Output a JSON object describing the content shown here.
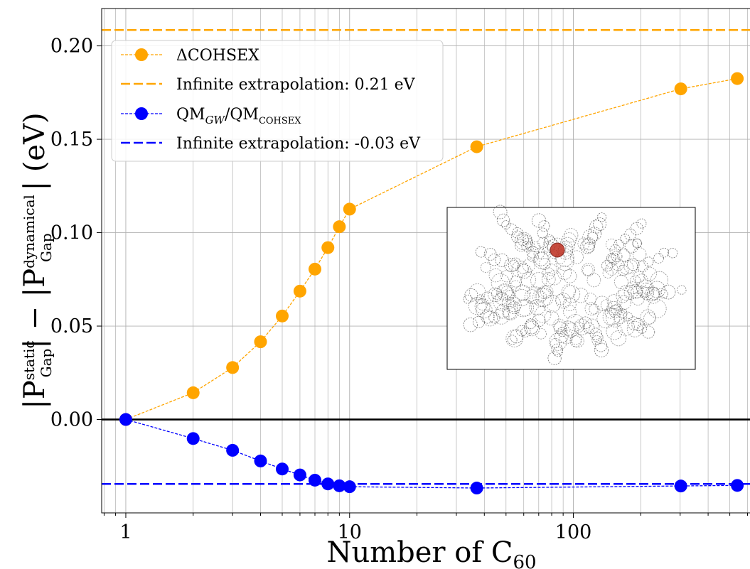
{
  "chart_data": {
    "type": "line",
    "xscale": "log",
    "xlim": [
      0.78,
      620
    ],
    "ylim": [
      -0.05,
      0.22
    ],
    "xlabel": {
      "text": "Number of C",
      "sub": "60"
    },
    "ylabel": {
      "t1": "|P",
      "t1_sup": "static",
      "t1_sub": "Gap",
      "t2": "| − |P",
      "t2_sup": "dynamical",
      "t2_sub": "Gap",
      "t3": "| (eV)"
    },
    "x_ticks": [
      {
        "value": 1,
        "label": "1"
      },
      {
        "value": 10,
        "label": "10"
      },
      {
        "value": 100,
        "label": "100"
      }
    ],
    "y_ticks": [
      {
        "value": 0.0,
        "label": "0.00"
      },
      {
        "value": 0.05,
        "label": "0.05"
      },
      {
        "value": 0.1,
        "label": "0.10"
      },
      {
        "value": 0.15,
        "label": "0.15"
      },
      {
        "value": 0.2,
        "label": "0.20"
      }
    ],
    "grid": true,
    "legend_position": "top-left",
    "series": [
      {
        "name": "ΔCOHSEX",
        "color": "#FFA500",
        "x": [
          1,
          2,
          3,
          4,
          5,
          6,
          7,
          8,
          9,
          10,
          37,
          302,
          540
        ],
        "y": [
          0.0,
          0.0143,
          0.0278,
          0.0416,
          0.0554,
          0.0687,
          0.0805,
          0.092,
          0.1032,
          0.1126,
          0.146,
          0.177,
          0.1825
        ]
      },
      {
        "name": "QM",
        "name_sub1": "GW",
        "name_mid": "/QM",
        "name_sub2": "COHSEX",
        "color": "#0000FF",
        "x": [
          1,
          2,
          3,
          4,
          5,
          6,
          7,
          8,
          9,
          10,
          37,
          302,
          540
        ],
        "y": [
          0.0,
          -0.0102,
          -0.0165,
          -0.0222,
          -0.0265,
          -0.0297,
          -0.0325,
          -0.0345,
          -0.0355,
          -0.036,
          -0.0367,
          -0.0356,
          -0.0353
        ]
      }
    ],
    "reference_lines": [
      {
        "label": "Infinite extrapolation: 0.21 eV",
        "y": 0.2085,
        "color": "#FFA500"
      },
      {
        "label": "Infinite extrapolation: -0.03 eV",
        "y": -0.0345,
        "color": "#0000FF"
      }
    ],
    "zero_line": 0.0
  },
  "inset": {
    "highlight_color": "#c0392b"
  }
}
